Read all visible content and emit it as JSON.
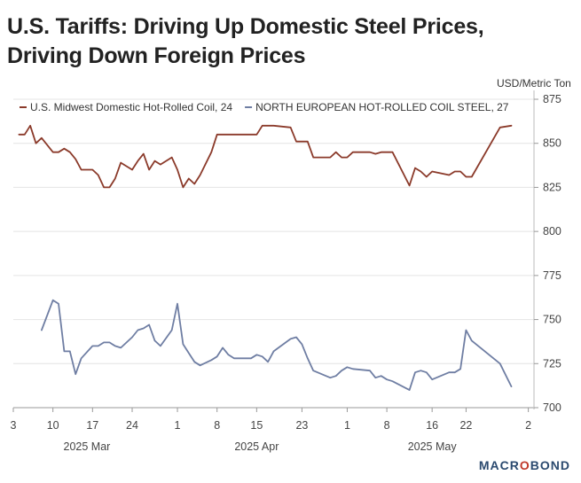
{
  "title_line1": "U.S. Tariffs: Driving Up Domestic Steel Prices,",
  "title_line2": "Driving Down Foreign Prices",
  "brand": {
    "pre": "MACR",
    "o": "O",
    "post": "BOND"
  },
  "chart_data": {
    "type": "line",
    "title": "U.S. Tariffs: Driving Up Domestic Steel Prices, Driving Down Foreign Prices",
    "unit_label": "USD/Metric Ton",
    "ylim": [
      700,
      875
    ],
    "y_ticks": [
      700,
      725,
      750,
      775,
      800,
      825,
      850,
      875
    ],
    "x_range": [
      "2025-03-03",
      "2025-06-03"
    ],
    "x_ticks": [
      {
        "date": "2025-03-03",
        "label": "3"
      },
      {
        "date": "2025-03-10",
        "label": "10"
      },
      {
        "date": "2025-03-17",
        "label": "17"
      },
      {
        "date": "2025-03-24",
        "label": "24"
      },
      {
        "date": "2025-04-01",
        "label": "1"
      },
      {
        "date": "2025-04-08",
        "label": "8"
      },
      {
        "date": "2025-04-15",
        "label": "15"
      },
      {
        "date": "2025-04-23",
        "label": "23"
      },
      {
        "date": "2025-05-01",
        "label": "1"
      },
      {
        "date": "2025-05-08",
        "label": "8"
      },
      {
        "date": "2025-05-16",
        "label": "16"
      },
      {
        "date": "2025-05-22",
        "label": "22"
      },
      {
        "date": "2025-06-02",
        "label": "2"
      }
    ],
    "month_labels": [
      {
        "date": "2025-03-16",
        "label": "2025 Mar"
      },
      {
        "date": "2025-04-15",
        "label": "2025 Apr"
      },
      {
        "date": "2025-05-16",
        "label": "2025 May"
      }
    ],
    "grid": "horizontal",
    "legend_position": "top-left",
    "series": [
      {
        "name": "U.S. Midwest Domestic Hot-Rolled Coil, 24",
        "color": "#8b3a2a",
        "points": [
          [
            "2025-03-04",
            855
          ],
          [
            "2025-03-05",
            855
          ],
          [
            "2025-03-06",
            860
          ],
          [
            "2025-03-07",
            850
          ],
          [
            "2025-03-08",
            853
          ],
          [
            "2025-03-10",
            845
          ],
          [
            "2025-03-11",
            845
          ],
          [
            "2025-03-12",
            847
          ],
          [
            "2025-03-13",
            845
          ],
          [
            "2025-03-14",
            841
          ],
          [
            "2025-03-15",
            835
          ],
          [
            "2025-03-17",
            835
          ],
          [
            "2025-03-18",
            832
          ],
          [
            "2025-03-19",
            825
          ],
          [
            "2025-03-20",
            825
          ],
          [
            "2025-03-21",
            830
          ],
          [
            "2025-03-22",
            839
          ],
          [
            "2025-03-24",
            835
          ],
          [
            "2025-03-25",
            840
          ],
          [
            "2025-03-26",
            844
          ],
          [
            "2025-03-27",
            835
          ],
          [
            "2025-03-28",
            840
          ],
          [
            "2025-03-29",
            838
          ],
          [
            "2025-03-31",
            842
          ],
          [
            "2025-04-01",
            835
          ],
          [
            "2025-04-02",
            825
          ],
          [
            "2025-04-03",
            830
          ],
          [
            "2025-04-04",
            827
          ],
          [
            "2025-04-05",
            832
          ],
          [
            "2025-04-07",
            845
          ],
          [
            "2025-04-08",
            855
          ],
          [
            "2025-04-11",
            855
          ],
          [
            "2025-04-14",
            855
          ],
          [
            "2025-04-15",
            855
          ],
          [
            "2025-04-16",
            860
          ],
          [
            "2025-04-17",
            860
          ],
          [
            "2025-04-18",
            860
          ],
          [
            "2025-04-21",
            859
          ],
          [
            "2025-04-22",
            851
          ],
          [
            "2025-04-23",
            851
          ],
          [
            "2025-04-24",
            851
          ],
          [
            "2025-04-25",
            842
          ],
          [
            "2025-04-28",
            842
          ],
          [
            "2025-04-29",
            845
          ],
          [
            "2025-04-30",
            842
          ],
          [
            "2025-05-01",
            842
          ],
          [
            "2025-05-02",
            845
          ],
          [
            "2025-05-05",
            845
          ],
          [
            "2025-05-06",
            844
          ],
          [
            "2025-05-07",
            845
          ],
          [
            "2025-05-08",
            845
          ],
          [
            "2025-05-09",
            845
          ],
          [
            "2025-05-12",
            826
          ],
          [
            "2025-05-13",
            836
          ],
          [
            "2025-05-14",
            834
          ],
          [
            "2025-05-15",
            831
          ],
          [
            "2025-05-16",
            834
          ],
          [
            "2025-05-19",
            832
          ],
          [
            "2025-05-20",
            834
          ],
          [
            "2025-05-21",
            834
          ],
          [
            "2025-05-22",
            831
          ],
          [
            "2025-05-23",
            831
          ],
          [
            "2025-05-28",
            859
          ],
          [
            "2025-05-30",
            860
          ]
        ]
      },
      {
        "name": "NORTH EUROPEAN HOT-ROLLED COIL STEEL, 27",
        "color": "#6f7ea3",
        "points": [
          [
            "2025-03-08",
            744
          ],
          [
            "2025-03-10",
            761
          ],
          [
            "2025-03-11",
            759
          ],
          [
            "2025-03-12",
            732
          ],
          [
            "2025-03-13",
            732
          ],
          [
            "2025-03-14",
            719
          ],
          [
            "2025-03-15",
            728
          ],
          [
            "2025-03-17",
            735
          ],
          [
            "2025-03-18",
            735
          ],
          [
            "2025-03-19",
            737
          ],
          [
            "2025-03-20",
            737
          ],
          [
            "2025-03-21",
            735
          ],
          [
            "2025-03-22",
            734
          ],
          [
            "2025-03-24",
            740
          ],
          [
            "2025-03-25",
            744
          ],
          [
            "2025-03-26",
            745
          ],
          [
            "2025-03-27",
            747
          ],
          [
            "2025-03-28",
            738
          ],
          [
            "2025-03-29",
            735
          ],
          [
            "2025-03-31",
            744
          ],
          [
            "2025-04-01",
            759
          ],
          [
            "2025-04-02",
            736
          ],
          [
            "2025-04-03",
            731
          ],
          [
            "2025-04-04",
            726
          ],
          [
            "2025-04-05",
            724
          ],
          [
            "2025-04-07",
            727
          ],
          [
            "2025-04-08",
            729
          ],
          [
            "2025-04-09",
            734
          ],
          [
            "2025-04-10",
            730
          ],
          [
            "2025-04-11",
            728
          ],
          [
            "2025-04-14",
            728
          ],
          [
            "2025-04-15",
            730
          ],
          [
            "2025-04-16",
            729
          ],
          [
            "2025-04-17",
            726
          ],
          [
            "2025-04-18",
            732
          ],
          [
            "2025-04-21",
            739
          ],
          [
            "2025-04-22",
            740
          ],
          [
            "2025-04-23",
            736
          ],
          [
            "2025-04-24",
            728
          ],
          [
            "2025-04-25",
            721
          ],
          [
            "2025-04-28",
            717
          ],
          [
            "2025-04-29",
            718
          ],
          [
            "2025-04-30",
            721
          ],
          [
            "2025-05-01",
            723
          ],
          [
            "2025-05-02",
            722
          ],
          [
            "2025-05-05",
            721
          ],
          [
            "2025-05-06",
            717
          ],
          [
            "2025-05-07",
            718
          ],
          [
            "2025-05-08",
            716
          ],
          [
            "2025-05-09",
            715
          ],
          [
            "2025-05-12",
            710
          ],
          [
            "2025-05-13",
            720
          ],
          [
            "2025-05-14",
            721
          ],
          [
            "2025-05-15",
            720
          ],
          [
            "2025-05-16",
            716
          ],
          [
            "2025-05-19",
            720
          ],
          [
            "2025-05-20",
            720
          ],
          [
            "2025-05-21",
            722
          ],
          [
            "2025-05-22",
            744
          ],
          [
            "2025-05-23",
            738
          ],
          [
            "2025-05-28",
            725
          ],
          [
            "2025-05-30",
            712
          ]
        ]
      }
    ]
  }
}
